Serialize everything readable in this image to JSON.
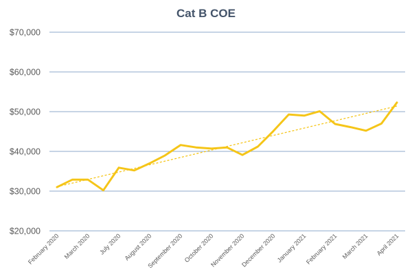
{
  "chart_data": {
    "type": "line",
    "title": "Cat B COE",
    "xlabel": "",
    "ylabel": "",
    "ylim": [
      20000,
      70000
    ],
    "yticks": [
      20000,
      30000,
      40000,
      50000,
      60000,
      70000
    ],
    "ytick_labels": [
      "$20,000",
      "$30,000",
      "$40,000",
      "$50,000",
      "$60,000",
      "$70,000"
    ],
    "x_tick_labels": [
      "February 2020",
      "March 2020",
      "July 2020",
      "August 2020",
      "September 2020",
      "October 2020",
      "November 2020",
      "December 2020",
      "January 2021",
      "February 2021",
      "March 2021",
      "April 2021"
    ],
    "grid": true,
    "legend": "none",
    "series": [
      {
        "values": [
          31000,
          32900,
          32900,
          30200,
          35900,
          35200,
          37000,
          39000,
          41600,
          41000,
          40700,
          41000,
          39100,
          41200,
          45100,
          49300,
          49000,
          50100,
          46900,
          46100,
          45200,
          47000,
          52300
        ],
        "color": "#f5c518"
      }
    ],
    "trendline": {
      "style": "dashed",
      "color": "#f5c518",
      "start_value": 31100,
      "end_value": 51400
    }
  }
}
